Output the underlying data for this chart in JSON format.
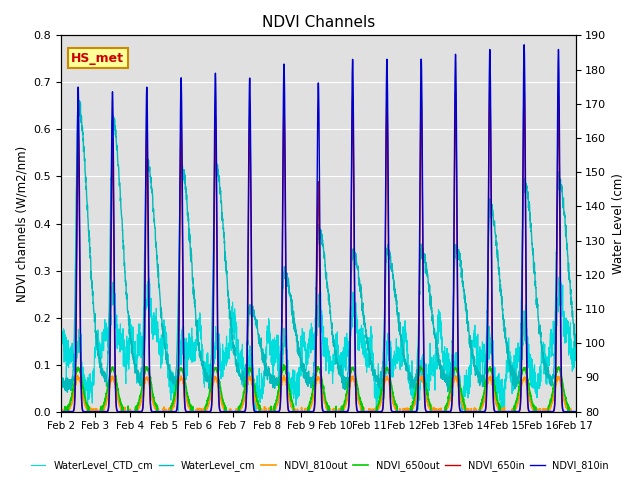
{
  "title": "NDVI Channels",
  "ylabel_left": "NDVI channels (W/m2/nm)",
  "ylabel_right": "Water Level (cm)",
  "ylim_left": [
    0.0,
    0.8
  ],
  "ylim_right": [
    80,
    190
  ],
  "yticks_left": [
    0.0,
    0.1,
    0.2,
    0.3,
    0.4,
    0.5,
    0.6,
    0.7,
    0.8
  ],
  "yticks_right": [
    80,
    90,
    100,
    110,
    120,
    130,
    140,
    150,
    160,
    170,
    180,
    190
  ],
  "legend_labels": [
    "NDVI_650in",
    "NDVI_810in",
    "NDVI_650out",
    "NDVI_810out",
    "WaterLevel_cm",
    "WaterLevel_CTD_cm"
  ],
  "legend_colors": [
    "#cc0000",
    "#0000cc",
    "#00cc00",
    "#ff9900",
    "#00bbbb",
    "#00dddd"
  ],
  "annotation_text": "HS_met",
  "annotation_color": "#cc0000",
  "annotation_bg": "#ffff99",
  "annotation_border": "#cc8800",
  "background_color": "#e0e0e0",
  "spike_peaks_810in": [
    0.69,
    0.68,
    0.69,
    0.71,
    0.72,
    0.71,
    0.74,
    0.7,
    0.75,
    0.75,
    0.75,
    0.76,
    0.77,
    0.78,
    0.77
  ],
  "spike_peaks_650in": [
    0.6,
    0.58,
    0.6,
    0.62,
    0.63,
    0.63,
    0.65,
    0.49,
    0.67,
    0.67,
    0.67,
    0.68,
    0.7,
    0.69,
    0.67
  ],
  "wl_cm_peaks": [
    170,
    165,
    153,
    152,
    152,
    110,
    120,
    133,
    127,
    127,
    127,
    128,
    140,
    147,
    148
  ],
  "wl_ctd_base": 93,
  "n_spikes": 15
}
